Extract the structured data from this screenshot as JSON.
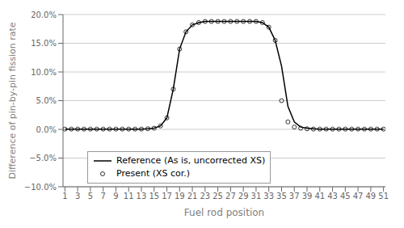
{
  "chart_data": {
    "type": "line",
    "title": "",
    "xlabel": "Fuel rod position",
    "ylabel": "Difference of pin-by-pin fission rate",
    "x": [
      1,
      2,
      3,
      4,
      5,
      6,
      7,
      8,
      9,
      10,
      11,
      12,
      13,
      14,
      15,
      16,
      17,
      18,
      19,
      20,
      21,
      22,
      23,
      24,
      25,
      26,
      27,
      28,
      29,
      30,
      31,
      32,
      33,
      34,
      35,
      36,
      37,
      38,
      39,
      40,
      41,
      42,
      43,
      44,
      45,
      46,
      47,
      48,
      49,
      50,
      51
    ],
    "xlim": [
      0.7,
      51.3
    ],
    "xticks": [
      1,
      3,
      5,
      7,
      9,
      11,
      13,
      15,
      17,
      19,
      21,
      23,
      25,
      27,
      29,
      31,
      33,
      35,
      37,
      39,
      41,
      43,
      45,
      47,
      49,
      51
    ],
    "ylim": [
      -0.1,
      0.2
    ],
    "yticks": [
      {
        "value": -0.1,
        "label": "−10.0%"
      },
      {
        "value": -0.05,
        "label": "−5.0%"
      },
      {
        "value": 0.0,
        "label": "0.0%"
      },
      {
        "value": 0.05,
        "label": "5.0%"
      },
      {
        "value": 0.1,
        "label": "10.0%"
      },
      {
        "value": 0.15,
        "label": "15.0%"
      },
      {
        "value": 0.2,
        "label": "20.0%"
      }
    ],
    "grid": "y",
    "legend": "lower left",
    "series": [
      {
        "name": "Reference (As is, uncorrected XS)",
        "type": "line",
        "color": "#000000",
        "values": [
          0.0005,
          0.0005,
          0.0005,
          0.0005,
          0.0005,
          0.0005,
          0.0005,
          0.0005,
          0.0005,
          0.0005,
          0.0005,
          0.0005,
          0.0005,
          0.001,
          0.002,
          0.006,
          0.02,
          0.07,
          0.14,
          0.17,
          0.182,
          0.186,
          0.188,
          0.188,
          0.188,
          0.188,
          0.188,
          0.188,
          0.188,
          0.188,
          0.188,
          0.186,
          0.178,
          0.155,
          0.11,
          0.04,
          0.013,
          0.004,
          0.002,
          0.001,
          0.0005,
          0.0005,
          0.0005,
          0.0005,
          0.0005,
          0.0005,
          0.0005,
          0.0005,
          0.0005,
          0.0005,
          0.0005
        ]
      },
      {
        "name": "Present (XS cor.)",
        "type": "scatter",
        "color": "#000000",
        "marker": "circle",
        "values": [
          0.0005,
          0.0005,
          0.0005,
          0.0005,
          0.0005,
          0.0005,
          0.0005,
          0.0005,
          0.0005,
          0.0005,
          0.0005,
          0.0005,
          0.0005,
          0.001,
          0.002,
          0.006,
          0.02,
          0.07,
          0.14,
          0.17,
          0.182,
          0.186,
          0.188,
          0.188,
          0.188,
          0.188,
          0.188,
          0.188,
          0.188,
          0.188,
          0.188,
          0.186,
          0.178,
          0.155,
          0.05,
          0.013,
          0.004,
          0.002,
          0.001,
          0.0005,
          0.0005,
          0.0005,
          0.0005,
          0.0005,
          0.0005,
          0.0005,
          0.0005,
          0.0005,
          0.0005,
          0.0005,
          0.0005
        ]
      }
    ]
  }
}
